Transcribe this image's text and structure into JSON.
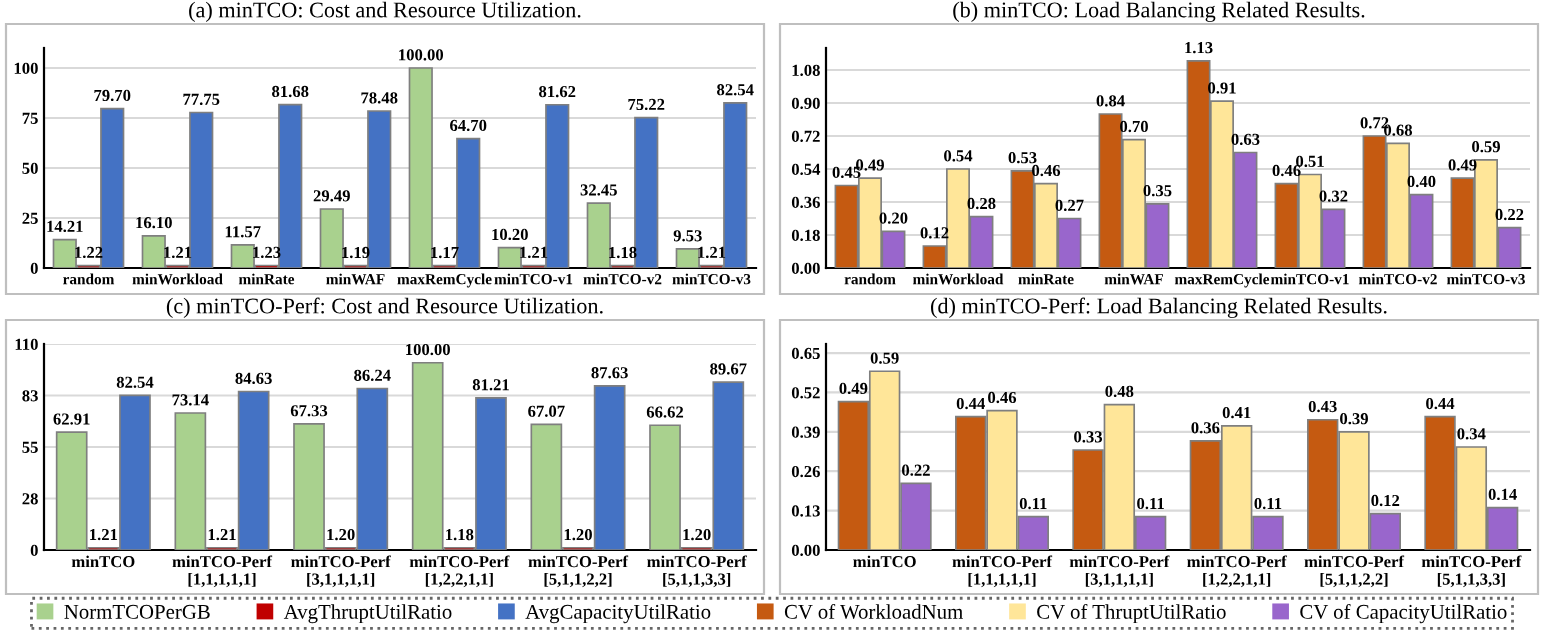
{
  "chart_data": [
    {
      "type": "bar",
      "title": "(a) minTCO: Cost and Resource Utilization.",
      "categories": [
        "random",
        "minWorkload",
        "minRate",
        "minWAF",
        "maxRemCycle",
        "minTCO-v1",
        "minTCO-v2",
        "minTCO-v3"
      ],
      "ylim": [
        0,
        110
      ],
      "yticks": [
        0,
        25,
        50,
        75,
        100
      ],
      "grid": "y",
      "legend": "bottom",
      "series": [
        {
          "name": "NormTCOPerGB",
          "color": "#a9d18e",
          "values": [
            14.21,
            16.1,
            11.57,
            29.49,
            100.0,
            10.2,
            32.45,
            9.53
          ],
          "value_labels": [
            "14.21",
            "16.10",
            "11.57",
            "29.49",
            "100.00",
            "10.20",
            "32.45",
            "9.53"
          ]
        },
        {
          "name": "AvgThruptUtilRatio",
          "color": "#c00000",
          "values": [
            1.22,
            1.21,
            1.23,
            1.19,
            1.17,
            1.21,
            1.18,
            1.21
          ],
          "value_labels": [
            "1.22",
            "1.21",
            "1.23",
            "1.19",
            "1.17",
            "1.21",
            "1.18",
            "1.21"
          ]
        },
        {
          "name": "AvgCapacityUtilRatio",
          "color": "#4472c4",
          "values": [
            79.7,
            77.75,
            81.68,
            78.48,
            64.7,
            81.62,
            75.22,
            82.54
          ],
          "value_labels": [
            "79.70",
            "77.75",
            "81.68",
            "78.48",
            "64.70",
            "81.62",
            "75.22",
            "82.54"
          ]
        }
      ]
    },
    {
      "type": "bar",
      "title": "(b) minTCO: Load Balancing Related Results.",
      "categories": [
        "random",
        "minWorkload",
        "minRate",
        "minWAF",
        "maxRemCycle",
        "minTCO-v1",
        "minTCO-v2",
        "minTCO-v3"
      ],
      "ylim": [
        0,
        1.2
      ],
      "yticks": [
        {
          "value": 0,
          "label": "0.00"
        },
        0.18,
        0.36,
        0.54,
        0.72,
        {
          "value": 0.9,
          "label": "0.90"
        },
        1.08
      ],
      "grid": "y",
      "legend": "bottom",
      "series": [
        {
          "name": "CV of WorkloadNum",
          "color": "#c55a11",
          "values": [
            0.45,
            0.12,
            0.53,
            0.84,
            1.13,
            0.46,
            0.72,
            0.49
          ],
          "value_labels": [
            "0.45",
            "0.12",
            "0.53",
            "0.84",
            "1.13",
            "0.46",
            "0.72",
            "0.49"
          ]
        },
        {
          "name": "CV of ThruptUtilRatio",
          "color": "#ffe699",
          "values": [
            0.49,
            0.54,
            0.46,
            0.7,
            0.91,
            0.51,
            0.68,
            0.59
          ],
          "value_labels": [
            "0.49",
            "0.54",
            "0.46",
            "0.70",
            "0.91",
            "0.51",
            "0.68",
            "0.59"
          ]
        },
        {
          "name": "CV of CapacityUtilRatio",
          "color": "#9966cc",
          "values": [
            0.2,
            0.28,
            0.27,
            0.35,
            0.63,
            0.32,
            0.4,
            0.22
          ],
          "value_labels": [
            "0.20",
            "0.28",
            "0.27",
            "0.35",
            "0.63",
            "0.32",
            "0.40",
            "0.22"
          ]
        }
      ]
    },
    {
      "type": "bar",
      "title": "(c) minTCO-Perf: Cost and Resource Utilization.",
      "categories": [
        "minTCO",
        "minTCO-Perf\n[1,1,1,1,1]",
        "minTCO-Perf\n[3,1,1,1,1]",
        "minTCO-Perf\n[1,2,2,1,1]",
        "minTCO-Perf\n[5,1,1,2,2]",
        "minTCO-Perf\n[5,1,1,3,3]"
      ],
      "ylim": [
        0,
        110
      ],
      "yticks": [
        0,
        {
          "value": 27.5,
          "label": "28"
        },
        55,
        {
          "value": 82.5,
          "label": "83"
        },
        110
      ],
      "grid": "y",
      "legend": "bottom",
      "series": [
        {
          "name": "NormTCOPerGB",
          "color": "#a9d18e",
          "values": [
            62.91,
            73.14,
            67.33,
            100.0,
            67.07,
            66.62
          ],
          "value_labels": [
            "62.91",
            "73.14",
            "67.33",
            "100.00",
            "67.07",
            "66.62"
          ]
        },
        {
          "name": "AvgThruptUtilRatio",
          "color": "#c00000",
          "values": [
            1.21,
            1.21,
            1.2,
            1.18,
            1.2,
            1.2
          ],
          "value_labels": [
            "1.21",
            "1.21",
            "1.20",
            "1.18",
            "1.20",
            "1.20"
          ]
        },
        {
          "name": "AvgCapacityUtilRatio",
          "color": "#4472c4",
          "values": [
            82.54,
            84.63,
            86.24,
            81.21,
            87.63,
            89.67
          ],
          "value_labels": [
            "82.54",
            "84.63",
            "86.24",
            "81.21",
            "87.63",
            "89.67"
          ]
        }
      ]
    },
    {
      "type": "bar",
      "title": "(d) minTCO-Perf: Load Balancing Related Results.",
      "categories": [
        "minTCO",
        "minTCO-Perf\n[1,1,1,1,1]",
        "minTCO-Perf\n[3,1,1,1,1]",
        "minTCO-Perf\n[1,2,2,1,1]",
        "minTCO-Perf\n[5,1,1,2,2]",
        "minTCO-Perf\n[5,1,1,3,3]"
      ],
      "ylim": [
        0,
        0.68
      ],
      "yticks": [
        {
          "value": 0,
          "label": "0.00"
        },
        0.13,
        0.26,
        0.39,
        0.52,
        0.65
      ],
      "grid": "y",
      "legend": "bottom",
      "series": [
        {
          "name": "CV of WorkloadNum",
          "color": "#c55a11",
          "values": [
            0.49,
            0.44,
            0.33,
            0.36,
            0.43,
            0.44
          ],
          "value_labels": [
            "0.49",
            "0.44",
            "0.33",
            "0.36",
            "0.43",
            "0.44"
          ]
        },
        {
          "name": "CV of ThruptUtilRatio",
          "color": "#ffe699",
          "values": [
            0.59,
            0.46,
            0.48,
            0.41,
            0.39,
            0.34
          ],
          "value_labels": [
            "0.59",
            "0.46",
            "0.48",
            "0.41",
            "0.39",
            "0.34"
          ]
        },
        {
          "name": "CV of CapacityUtilRatio",
          "color": "#9966cc",
          "values": [
            0.22,
            0.11,
            0.11,
            0.11,
            0.12,
            0.14
          ],
          "value_labels": [
            "0.22",
            "0.11",
            "0.11",
            "0.11",
            "0.12",
            "0.14"
          ]
        }
      ]
    }
  ]
}
